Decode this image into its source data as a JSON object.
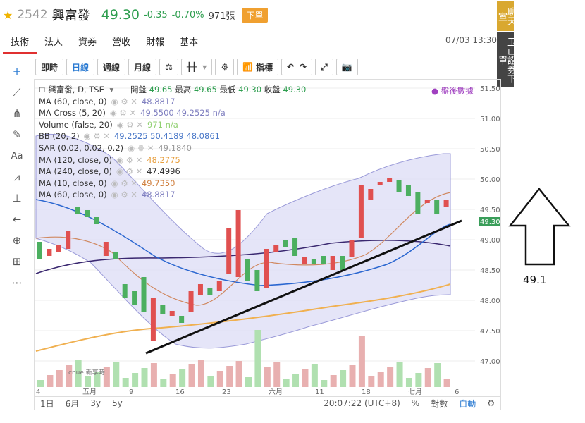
{
  "header": {
    "code": "2542",
    "name": "興富發",
    "price": "49.30",
    "change": "-0.35",
    "change_pct": "-0.70%",
    "volume": "971張",
    "sell_button": "下單"
  },
  "tabs": [
    "技術",
    "法人",
    "資券",
    "營收",
    "財報",
    "基本"
  ],
  "datetime": "07/03 13:30",
  "side_buttons": [
    "聊天室",
    "玉山證券下單"
  ],
  "toolbar": {
    "intraday": "即時",
    "daily": "日線",
    "weekly": "週線",
    "monthly": "月線",
    "indicators": "指標"
  },
  "left_tools": [
    "cross-icon",
    "line-icon",
    "fork-icon",
    "brush-icon",
    "text-tool",
    "pattern-icon",
    "measure-icon",
    "arrow-icon",
    "zoom-icon",
    "ruler-icon",
    "more-icon"
  ],
  "legend": {
    "title": "興富發, D, TSE",
    "ohlc_labels": {
      "open": "開盤",
      "high": "最高",
      "low": "最低",
      "close": "收盤"
    },
    "ohlc": {
      "open": "49.65",
      "high": "49.65",
      "low": "49.30",
      "close": "49.30"
    },
    "after_hours": "盤後數據",
    "rows": [
      {
        "label": "MA (60, close, 0)",
        "value": "48.8817",
        "color": "#8080c0"
      },
      {
        "label": "MA Cross (5, 20)",
        "value": "49.5500 49.2525 n/a",
        "color": "#8080c0"
      },
      {
        "label": "Volume (false, 20)",
        "value": "971 n/a",
        "color": "#90d070"
      },
      {
        "label": "BB (20, 2)",
        "value": "49.2525 50.4189 48.0861",
        "color": "#4a78c8"
      },
      {
        "label": "SAR (0.02, 0.02, 0.2)",
        "value": "49.1840",
        "color": "#999999"
      },
      {
        "label": "MA (120, close, 0)",
        "value": "48.2775",
        "color": "#e8a040"
      },
      {
        "label": "MA (240, close, 0)",
        "value": "47.4996",
        "color": "#333333"
      },
      {
        "label": "MA (10, close, 0)",
        "value": "49.7350",
        "color": "#d08040"
      },
      {
        "label": "MA (60, close, 0)",
        "value": "48.8817",
        "color": "#8080c0"
      }
    ]
  },
  "price_axis": [
    "51.50",
    "51.00",
    "50.50",
    "50.00",
    "49.50",
    "49.00",
    "48.50",
    "48.00",
    "47.50",
    "47.00"
  ],
  "current_price_tag": "49.30",
  "time_axis": [
    "4",
    "五月",
    "9",
    "16",
    "23",
    "六月",
    "11",
    "18",
    "七月",
    "6"
  ],
  "watermark": "cnue 新享時",
  "bottom_bar": {
    "ranges": [
      "1日",
      "6月",
      "3y",
      "5y"
    ],
    "clock": "20:07:22 (UTC+8)",
    "pct": "%",
    "log": "對數",
    "auto": "自動"
  },
  "annotation": "49.1",
  "colors": {
    "up": "#e05050",
    "down": "#4caf60",
    "bb_fill": "#dcdcf5",
    "bb_line": "#8080c0"
  }
}
